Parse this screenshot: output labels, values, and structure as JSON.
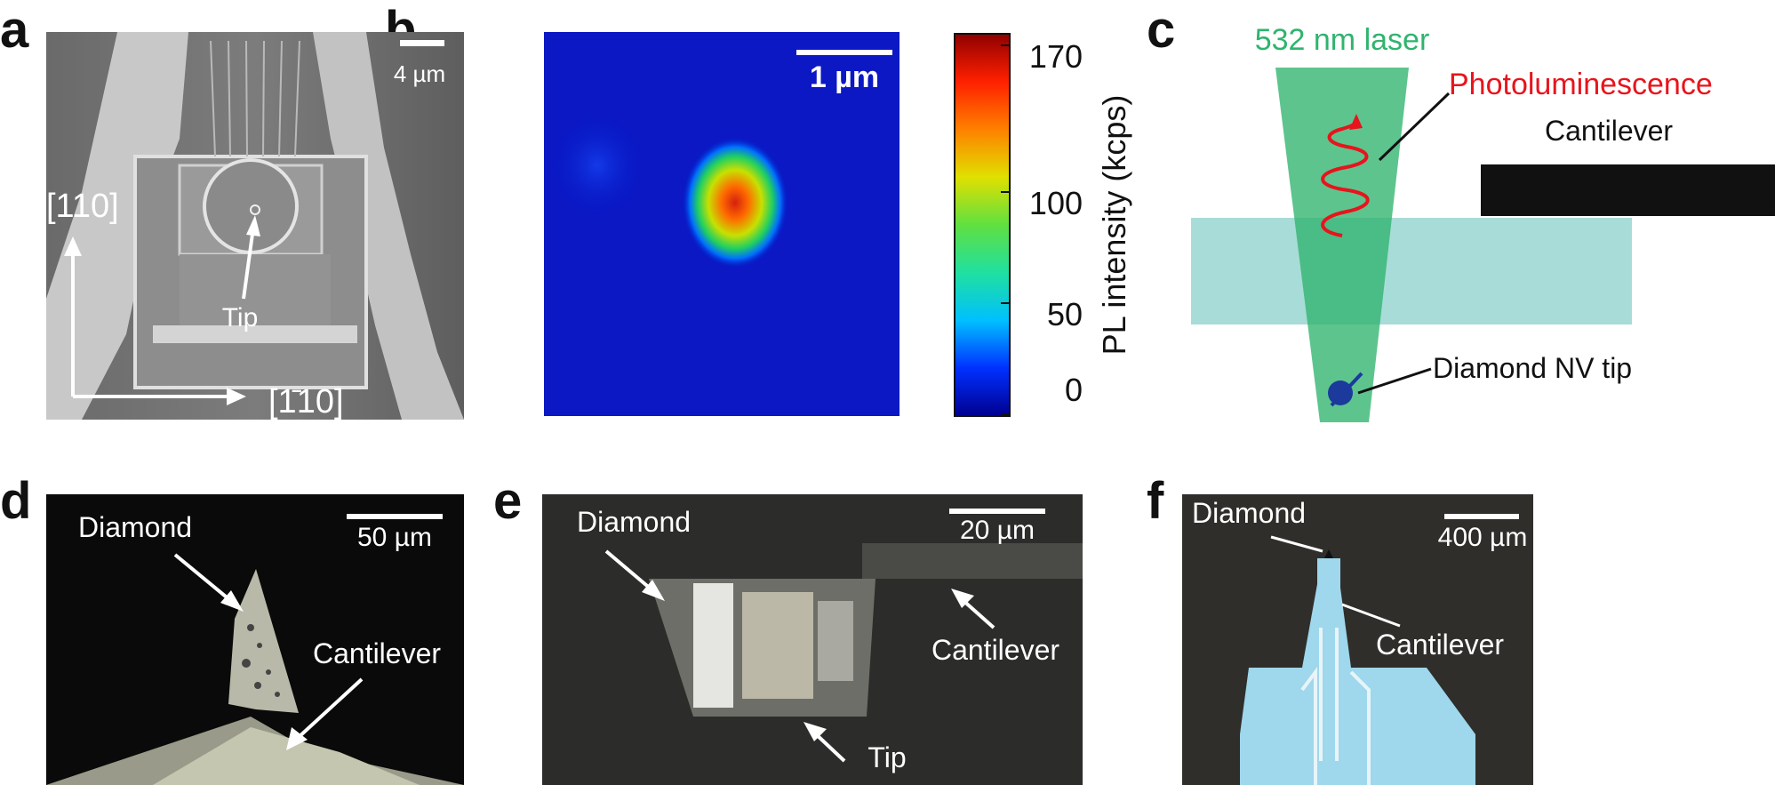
{
  "panel_labels": {
    "a": "a",
    "b": "b",
    "c": "c",
    "d": "d",
    "e": "e",
    "f": "f"
  },
  "panel_a": {
    "scalebar": "4 µm",
    "axis_y": "[110]",
    "axis_x": "[1̄10]",
    "arrow_label": "Tip"
  },
  "panel_b": {
    "scalebar": "1 µm",
    "colorbar_label": "PL intensity (kcps)",
    "colorbar_ticks": [
      "170",
      "100",
      "50",
      "0"
    ],
    "colorbar_range": [
      0,
      170
    ],
    "colorbar_colors": [
      "#00008f",
      "#0030ff",
      "#00c0ff",
      "#20e0a0",
      "#60e040",
      "#e0e000",
      "#ff8000",
      "#ff2000",
      "#8f0000"
    ]
  },
  "panel_c": {
    "laser_label": "532 nm laser",
    "pl_label": "Photoluminescence",
    "cantilever_label": "Cantilever",
    "tip_label": "Diamond NV tip",
    "colors": {
      "laser": "#2fb46e",
      "pl": "#e8141c",
      "diamond": "#a8dcd8",
      "cantilever": "#111111",
      "nv": "#1b3a9c"
    }
  },
  "panel_d": {
    "scalebar": "50 µm",
    "diamond_label": "Diamond",
    "cantilever_label": "Cantilever"
  },
  "panel_e": {
    "scalebar": "20 µm",
    "diamond_label": "Diamond",
    "cantilever_label": "Cantilever",
    "tip_label": "Tip"
  },
  "panel_f": {
    "scalebar": "400 µm",
    "diamond_label": "Diamond",
    "cantilever_label": "Cantilever"
  }
}
